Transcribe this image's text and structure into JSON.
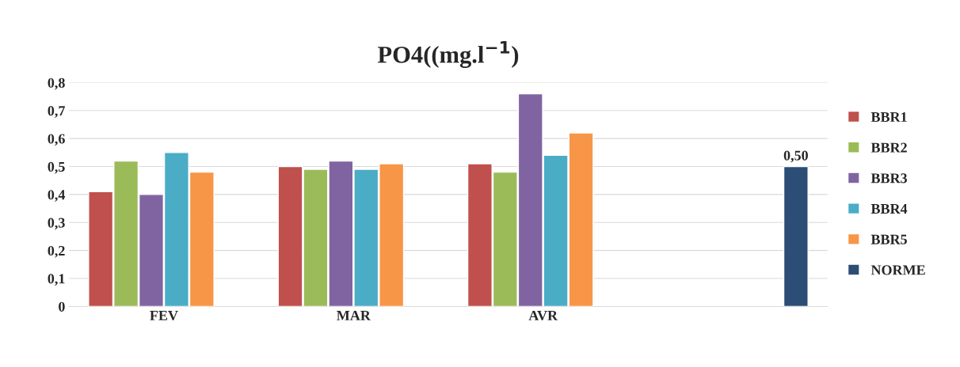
{
  "chart_data": {
    "type": "bar",
    "title": "PO4((mg.l$^{−1}$)",
    "categories": [
      "FEV",
      "MAR",
      "AVR",
      null
    ],
    "series": [
      {
        "name": "BBR1",
        "color": "#c0504d",
        "values": [
          0.41,
          0.5,
          0.51,
          null
        ]
      },
      {
        "name": "BBR2",
        "color": "#9bbb59",
        "values": [
          0.52,
          0.49,
          0.48,
          null
        ]
      },
      {
        "name": "BBR3",
        "color": "#8064a2",
        "values": [
          0.4,
          0.52,
          0.76,
          null
        ]
      },
      {
        "name": "BBR4",
        "color": "#4bacc6",
        "values": [
          0.55,
          0.49,
          0.54,
          null
        ]
      },
      {
        "name": "BBR5",
        "color": "#f79646",
        "values": [
          0.48,
          0.51,
          0.62,
          null
        ]
      },
      {
        "name": "NORME",
        "color": "#2c4d75",
        "values": [
          null,
          null,
          null,
          0.5
        ],
        "value_labels": [
          null,
          null,
          null,
          "0,50"
        ]
      }
    ],
    "ylim": [
      0,
      0.8
    ],
    "yticks": [
      0,
      {
        "value": 0.1,
        "label": "0,1"
      },
      {
        "value": 0.2,
        "label": "0,2"
      },
      {
        "value": 0.3,
        "label": "0,3"
      },
      {
        "value": 0.4,
        "label": "0,4"
      },
      {
        "value": 0.5,
        "label": "0,5"
      },
      {
        "value": 0.6,
        "label": "0,6"
      },
      {
        "value": 0.7,
        "label": "0,7"
      },
      {
        "value": 0.8,
        "label": "0,8"
      }
    ],
    "grid": "y",
    "legend": "right"
  }
}
